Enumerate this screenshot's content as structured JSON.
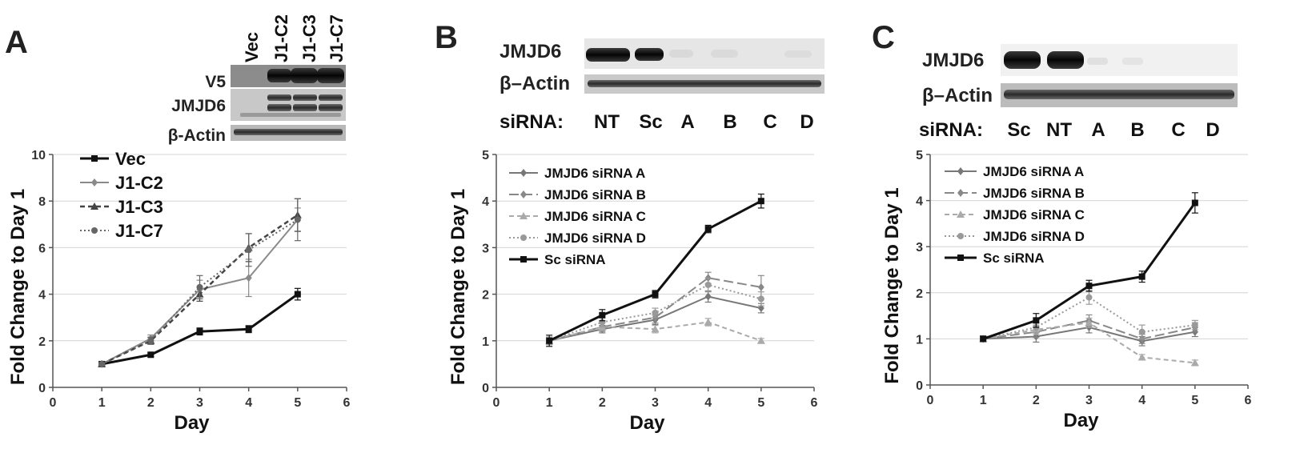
{
  "panels": [
    {
      "letter": "A",
      "blot": {
        "lanes": [
          "Vec",
          "J1-C2",
          "J1-C3",
          "J1-C7"
        ],
        "rows": [
          "V5",
          "JMJD6",
          "β-Actin"
        ]
      }
    },
    {
      "letter": "B",
      "blot": {
        "rows": [
          "JMJD6",
          "β–Actin"
        ],
        "lane_prefix": "siRNA:",
        "lanes": [
          "NT",
          "Sc",
          "A",
          "B",
          "C",
          "D"
        ]
      }
    },
    {
      "letter": "C",
      "blot": {
        "rows": [
          "JMJD6",
          "β–Actin"
        ],
        "lane_prefix": "siRNA:",
        "lanes": [
          "Sc",
          "NT",
          "A",
          "B",
          "C",
          "D"
        ]
      }
    }
  ],
  "chart_data": [
    {
      "type": "line",
      "xlabel": "Day",
      "ylabel": "Fold Change to Day 1",
      "xlim": [
        0,
        6
      ],
      "ylim": [
        0,
        10
      ],
      "xticks": [
        0,
        1,
        2,
        3,
        4,
        5,
        6
      ],
      "yticks": [
        0,
        2,
        4,
        6,
        8,
        10
      ],
      "grid": "horizontal",
      "legend_position": "top-left",
      "series": [
        {
          "name": "Vec",
          "x": [
            1,
            2,
            3,
            4,
            5
          ],
          "y": [
            1.0,
            1.4,
            2.4,
            2.5,
            4.0
          ],
          "err": [
            0.05,
            0.08,
            0.15,
            0.15,
            0.25
          ],
          "color": "#111111",
          "dash": "",
          "marker": "square",
          "width": 3
        },
        {
          "name": "J1-C2",
          "x": [
            1,
            2,
            3,
            4,
            5
          ],
          "y": [
            1.0,
            2.1,
            4.2,
            4.7,
            7.2
          ],
          "err": [
            0.05,
            0.15,
            0.4,
            0.8,
            0.5
          ],
          "color": "#8a8a8a",
          "dash": "",
          "marker": "diamond",
          "width": 2
        },
        {
          "name": "J1-C3",
          "x": [
            1,
            2,
            3,
            4,
            5
          ],
          "y": [
            1.0,
            2.0,
            4.0,
            6.0,
            7.4
          ],
          "err": [
            0.05,
            0.15,
            0.3,
            0.6,
            0.7
          ],
          "color": "#444444",
          "dash": "6,4",
          "marker": "triangle",
          "width": 2.5
        },
        {
          "name": "J1-C7",
          "x": [
            1,
            2,
            3,
            4,
            5
          ],
          "y": [
            1.0,
            2.0,
            4.3,
            5.9,
            7.2
          ],
          "err": [
            0.05,
            0.15,
            0.5,
            0.7,
            0.9
          ],
          "color": "#666666",
          "dash": "2,3",
          "marker": "circle",
          "width": 2
        }
      ]
    },
    {
      "type": "line",
      "xlabel": "Day",
      "ylabel": "Fold Change to Day 1",
      "xlim": [
        0,
        6
      ],
      "ylim": [
        0,
        5
      ],
      "xticks": [
        0,
        1,
        2,
        3,
        4,
        5,
        6
      ],
      "yticks": [
        0,
        1,
        2,
        3,
        4,
        5
      ],
      "grid": "horizontal",
      "legend_position": "top-left",
      "series": [
        {
          "name": "JMJD6 siRNA A",
          "x": [
            1,
            2,
            3,
            4,
            5
          ],
          "y": [
            1.0,
            1.25,
            1.45,
            1.95,
            1.7
          ],
          "err": [
            0.08,
            0.08,
            0.1,
            0.12,
            0.1
          ],
          "color": "#777777",
          "dash": "",
          "marker": "diamond",
          "width": 2
        },
        {
          "name": "JMJD6 siRNA B",
          "x": [
            1,
            2,
            3,
            4,
            5
          ],
          "y": [
            1.0,
            1.3,
            1.5,
            2.35,
            2.15
          ],
          "err": [
            0.08,
            0.1,
            0.12,
            0.12,
            0.25
          ],
          "color": "#888888",
          "dash": "12,5",
          "marker": "diamond",
          "width": 2
        },
        {
          "name": "JMJD6 siRNA C",
          "x": [
            1,
            2,
            3,
            4,
            5
          ],
          "y": [
            1.0,
            1.3,
            1.25,
            1.4,
            1.0
          ],
          "err": [
            0.08,
            0.08,
            0.08,
            0.08,
            0.05
          ],
          "color": "#aaaaaa",
          "dash": "6,4",
          "marker": "triangle",
          "width": 2
        },
        {
          "name": "JMJD6 siRNA D",
          "x": [
            1,
            2,
            3,
            4,
            5
          ],
          "y": [
            1.0,
            1.4,
            1.6,
            2.2,
            1.9
          ],
          "err": [
            0.08,
            0.1,
            0.1,
            0.15,
            0.15
          ],
          "color": "#999999",
          "dash": "2,3",
          "marker": "circle",
          "width": 2
        },
        {
          "name": "Sc siRNA",
          "x": [
            1,
            2,
            3,
            4,
            5
          ],
          "y": [
            1.0,
            1.55,
            2.0,
            3.4,
            4.0
          ],
          "err": [
            0.12,
            0.12,
            0.08,
            0.08,
            0.15
          ],
          "color": "#111111",
          "dash": "",
          "marker": "square",
          "width": 3
        }
      ]
    },
    {
      "type": "line",
      "xlabel": "Day",
      "ylabel": "Fold Change to Day 1",
      "xlim": [
        0,
        6
      ],
      "ylim": [
        0,
        5
      ],
      "xticks": [
        0,
        1,
        2,
        3,
        4,
        5,
        6
      ],
      "yticks": [
        0,
        1,
        2,
        3,
        4,
        5
      ],
      "grid": "horizontal",
      "legend_position": "top-left",
      "series": [
        {
          "name": "JMJD6 siRNA A",
          "x": [
            1,
            2,
            3,
            4,
            5
          ],
          "y": [
            1.0,
            1.05,
            1.25,
            0.95,
            1.15
          ],
          "err": [
            0.06,
            0.12,
            0.12,
            0.1,
            0.1
          ],
          "color": "#777777",
          "dash": "",
          "marker": "diamond",
          "width": 2
        },
        {
          "name": "JMJD6 siRNA B",
          "x": [
            1,
            2,
            3,
            4,
            5
          ],
          "y": [
            1.0,
            1.15,
            1.4,
            1.0,
            1.25
          ],
          "err": [
            0.06,
            0.12,
            0.12,
            0.1,
            0.1
          ],
          "color": "#888888",
          "dash": "12,5",
          "marker": "diamond",
          "width": 2
        },
        {
          "name": "JMJD6 siRNA C",
          "x": [
            1,
            2,
            3,
            4,
            5
          ],
          "y": [
            1.0,
            1.2,
            1.35,
            0.6,
            0.48
          ],
          "err": [
            0.05,
            0.1,
            0.1,
            0.06,
            0.06
          ],
          "color": "#aaaaaa",
          "dash": "6,4",
          "marker": "triangle",
          "width": 2
        },
        {
          "name": "JMJD6 siRNA D",
          "x": [
            1,
            2,
            3,
            4,
            5
          ],
          "y": [
            1.0,
            1.25,
            1.9,
            1.15,
            1.3
          ],
          "err": [
            0.06,
            0.12,
            0.15,
            0.15,
            0.1
          ],
          "color": "#999999",
          "dash": "2,3",
          "marker": "circle",
          "width": 2
        },
        {
          "name": "Sc siRNA",
          "x": [
            1,
            2,
            3,
            4,
            5
          ],
          "y": [
            1.0,
            1.4,
            2.15,
            2.35,
            3.95
          ],
          "err": [
            0.06,
            0.15,
            0.12,
            0.12,
            0.22
          ],
          "color": "#111111",
          "dash": "",
          "marker": "square",
          "width": 3
        }
      ]
    }
  ]
}
